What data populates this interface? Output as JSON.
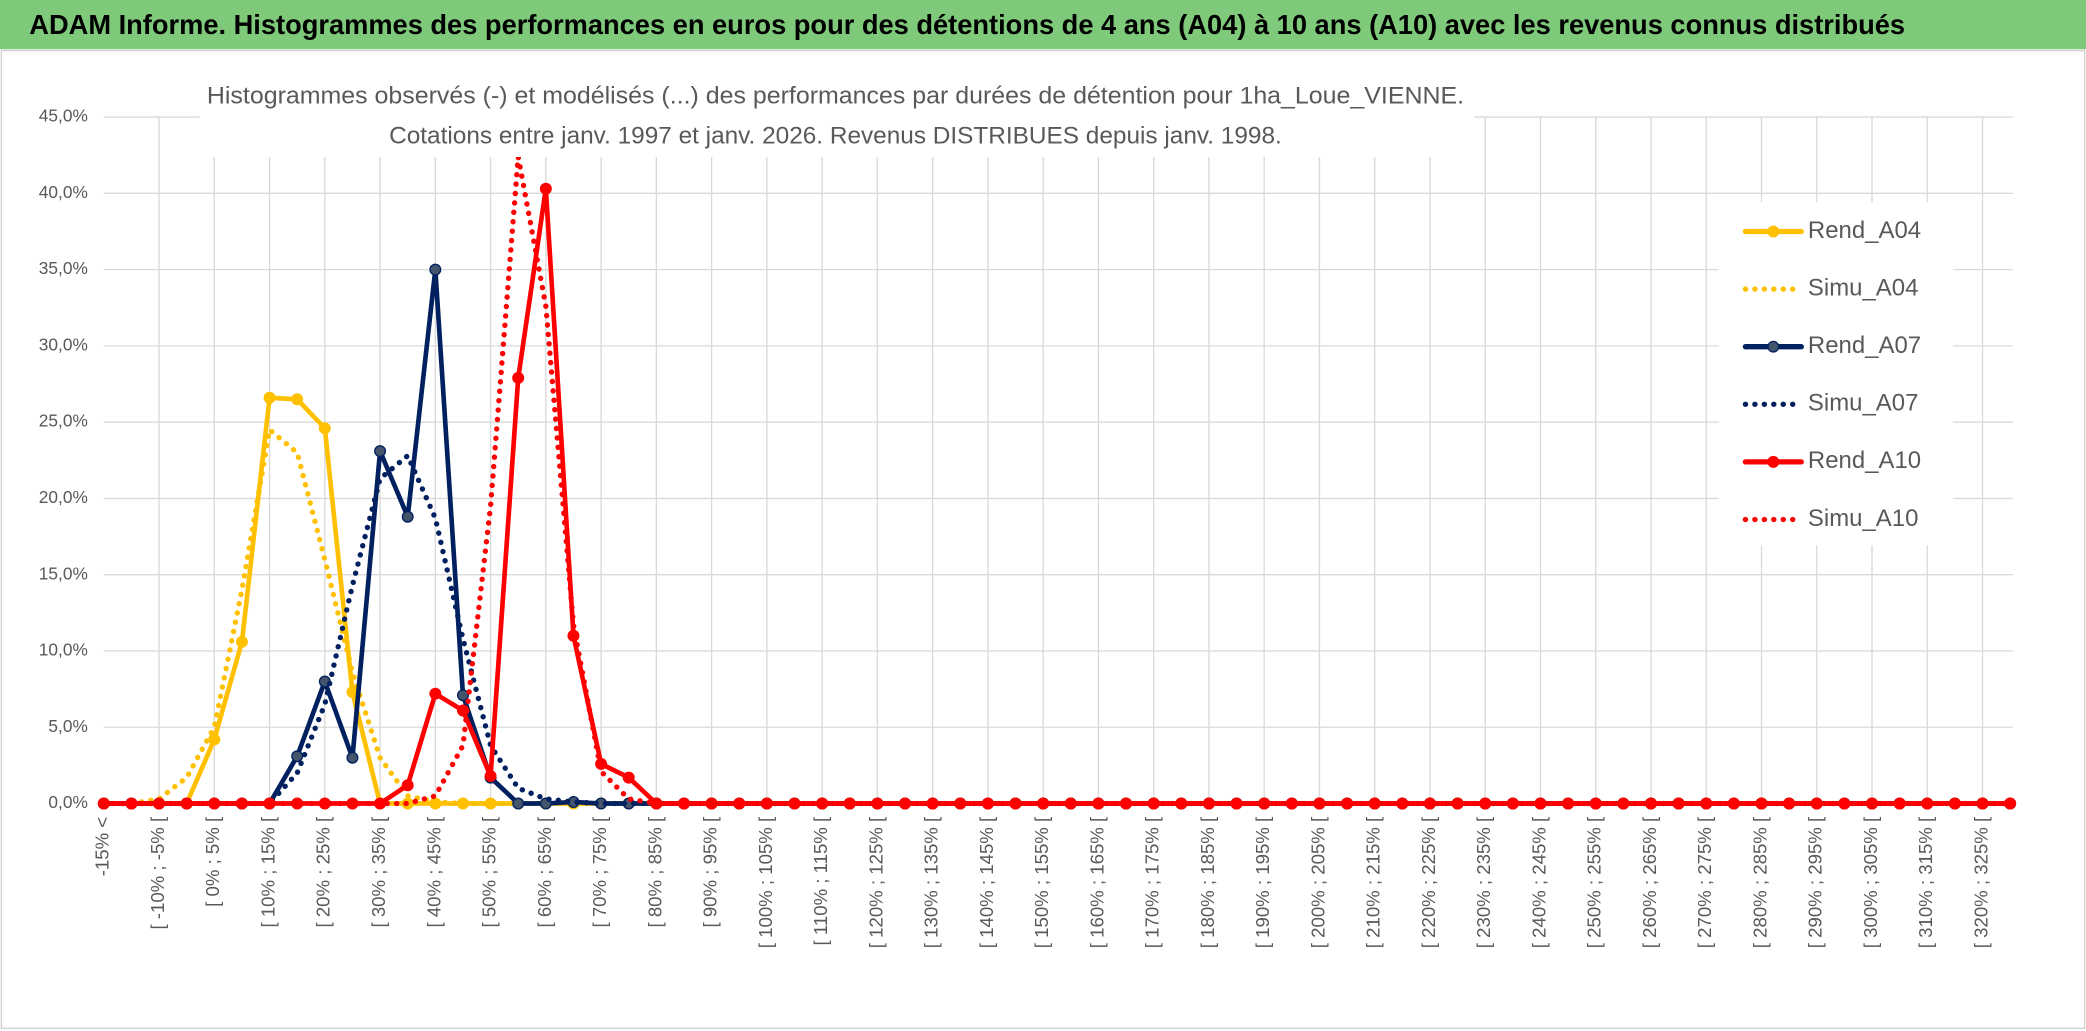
{
  "header": {
    "title": "ADAM Informe. Histogrammes des performances en euros pour des détentions de 4 ans (A04) à 10 ans (A10) avec les revenus connus distribués"
  },
  "chart_data": {
    "type": "line",
    "title": "Histogrammes observés (-) et modélisés (...) des performances par durées de détention pour 1ha_Loue_VIENNE.",
    "subtitle": "Cotations entre janv. 1997 et janv. 2026. Revenus DISTRIBUES depuis janv. 1998.",
    "categories": [
      "-15% <",
      null,
      "[ -10% ; -5% [",
      null,
      "[ 0% ; 5% [",
      null,
      "[ 10% ; 15% [",
      null,
      "[ 20% ; 25% [",
      null,
      "[ 30% ; 35% [",
      null,
      "[ 40% ; 45% [",
      null,
      "[ 50% ; 55% [",
      null,
      "[ 60% ; 65% [",
      null,
      "[ 70% ; 75% [",
      null,
      "[ 80% ; 85% [",
      null,
      "[ 90% ; 95% [",
      null,
      "[ 100% ; 105% [",
      null,
      "[ 110% ; 115% [",
      null,
      "[ 120% ; 125% [",
      null,
      "[ 130% ; 135% [",
      null,
      "[ 140% ; 145% [",
      null,
      "[ 150% ; 155% [",
      null,
      "[ 160% ; 165% [",
      null,
      "[ 170% ; 175% [",
      null,
      "[ 180% ; 185% [",
      null,
      "[ 190% ; 195% [",
      null,
      "[ 200% ; 205% [",
      null,
      "[ 210% ; 215% [",
      null,
      "[ 220% ; 225% [",
      null,
      "[ 230% ; 235% [",
      null,
      "[ 240% ; 245% [",
      null,
      "[ 250% ; 255% [",
      null,
      "[ 260% ; 265% [",
      null,
      "[ 270% ; 275% [",
      null,
      "[ 280% ; 285% [",
      null,
      "[ 290% ; 295% [",
      null,
      "[ 300% ; 305% [",
      null,
      "[ 310% ; 315% [",
      null,
      "[ 320% ; 325% [",
      null
    ],
    "series": [
      {
        "name": "Rend_A04",
        "color": "#FFC000",
        "line_style": "solid",
        "markers": true,
        "values": [
          0,
          0,
          0,
          0,
          4.2,
          10.6,
          26.6,
          26.5,
          24.6,
          7.3,
          0,
          0,
          0,
          0,
          0,
          0,
          0,
          0,
          0,
          0,
          0,
          0,
          0,
          0,
          0,
          0,
          0,
          0,
          0,
          0,
          0,
          0,
          0,
          0,
          0,
          0,
          0,
          0,
          0,
          0,
          0,
          0,
          0,
          0,
          0,
          0,
          0,
          0,
          0,
          0,
          0,
          0,
          0,
          0,
          0,
          0,
          0,
          0,
          0,
          0,
          0,
          0,
          0,
          0,
          0,
          0,
          0,
          0,
          0,
          0
        ]
      },
      {
        "name": "Simu_A04",
        "color": "#FFC000",
        "line_style": "dotted",
        "markers": false,
        "values": [
          0,
          0,
          0.3,
          1.7,
          5,
          14,
          24.5,
          23,
          16,
          8.6,
          3,
          0.5,
          0.1,
          0,
          0,
          0,
          0,
          0,
          0,
          0,
          0,
          0,
          0,
          0,
          0,
          0,
          0,
          0,
          0,
          0,
          0,
          0,
          0,
          0,
          0,
          0,
          0,
          0,
          0,
          0,
          0,
          0,
          0,
          0,
          0,
          0,
          0,
          0,
          0,
          0,
          0,
          0,
          0,
          0,
          0,
          0,
          0,
          0,
          0,
          0,
          0,
          0,
          0,
          0,
          0,
          0,
          0,
          0,
          0,
          0
        ]
      },
      {
        "name": "Rend_A07",
        "color": "#002060",
        "line_style": "solid",
        "markers": true,
        "values": [
          0,
          0,
          0,
          0,
          0,
          0,
          0,
          3.1,
          8,
          3,
          23.1,
          18.8,
          35,
          7.1,
          1.7,
          0,
          0,
          0.1,
          0,
          0,
          0,
          0,
          0,
          0,
          0,
          0,
          0,
          0,
          0,
          0,
          0,
          0,
          0,
          0,
          0,
          0,
          0,
          0,
          0,
          0,
          0,
          0,
          0,
          0,
          0,
          0,
          0,
          0,
          0,
          0,
          0,
          0,
          0,
          0,
          0,
          0,
          0,
          0,
          0,
          0,
          0,
          0,
          0,
          0,
          0,
          0,
          0,
          0,
          0,
          0
        ]
      },
      {
        "name": "Simu_A07",
        "color": "#002060",
        "line_style": "dotted",
        "markers": false,
        "values": [
          0,
          0,
          0,
          0,
          0,
          0,
          0,
          2,
          6.5,
          14.3,
          21.3,
          22.8,
          18.7,
          10.8,
          3.8,
          1,
          0.3,
          0.1,
          0,
          0,
          0,
          0,
          0,
          0,
          0,
          0,
          0,
          0,
          0,
          0,
          0,
          0,
          0,
          0,
          0,
          0,
          0,
          0,
          0,
          0,
          0,
          0,
          0,
          0,
          0,
          0,
          0,
          0,
          0,
          0,
          0,
          0,
          0,
          0,
          0,
          0,
          0,
          0,
          0,
          0,
          0,
          0,
          0,
          0,
          0,
          0,
          0,
          0,
          0,
          0
        ]
      },
      {
        "name": "Rend_A10",
        "color": "#FF0000",
        "line_style": "solid",
        "markers": true,
        "values": [
          0,
          0,
          0,
          0,
          0,
          0,
          0,
          0,
          0,
          0,
          0,
          1.2,
          7.2,
          6.1,
          1.8,
          27.9,
          40.3,
          11,
          2.6,
          1.7,
          0,
          0,
          0,
          0,
          0,
          0,
          0,
          0,
          0,
          0,
          0,
          0,
          0,
          0,
          0,
          0,
          0,
          0,
          0,
          0,
          0,
          0,
          0,
          0,
          0,
          0,
          0,
          0,
          0,
          0,
          0,
          0,
          0,
          0,
          0,
          0,
          0,
          0,
          0,
          0,
          0,
          0,
          0,
          0,
          0,
          0,
          0,
          0,
          0,
          0
        ]
      },
      {
        "name": "Simu_A10",
        "color": "#FF0000",
        "line_style": "dotted",
        "markers": false,
        "values": [
          0,
          0,
          0,
          0,
          0,
          0,
          0,
          0,
          0,
          0,
          0,
          0,
          0.5,
          3.8,
          19.5,
          42.4,
          32.6,
          11.7,
          2.1,
          0.3,
          0,
          0,
          0,
          0,
          0,
          0,
          0,
          0,
          0,
          0,
          0,
          0,
          0,
          0,
          0,
          0,
          0,
          0,
          0,
          0,
          0,
          0,
          0,
          0,
          0,
          0,
          0,
          0,
          0,
          0,
          0,
          0,
          0,
          0,
          0,
          0,
          0,
          0,
          0,
          0,
          0,
          0,
          0,
          0,
          0,
          0,
          0,
          0,
          0,
          0
        ]
      }
    ],
    "ylim": [
      0,
      45
    ],
    "yticks": [
      {
        "value": 0,
        "label": "0,0%"
      },
      {
        "value": 5,
        "label": "5,0%"
      },
      {
        "value": 10,
        "label": "10,0%"
      },
      {
        "value": 15,
        "label": "15,0%"
      },
      {
        "value": 20,
        "label": "20,0%"
      },
      {
        "value": 25,
        "label": "25,0%"
      },
      {
        "value": 30,
        "label": "30,0%"
      },
      {
        "value": 35,
        "label": "35,0%"
      },
      {
        "value": 40,
        "label": "40,0%"
      },
      {
        "value": 45,
        "label": "45,0%"
      }
    ],
    "grid": true,
    "legend": "right"
  }
}
